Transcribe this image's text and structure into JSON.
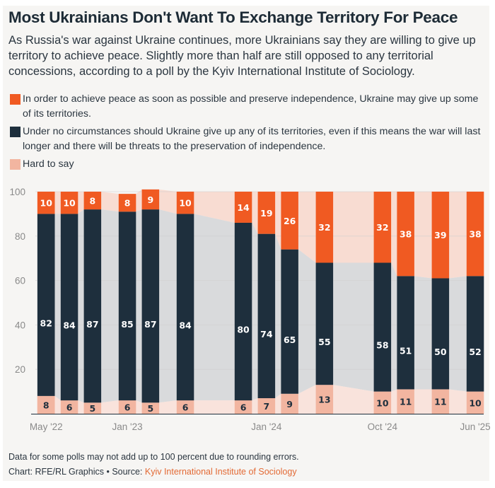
{
  "title": "Most Ukrainians Don't Want To Exchange Territory For Peace",
  "subtitle": "As Russia's war against Ukraine continues, more Ukrainians say they are willing to give up territory to achieve peace. Slightly more than half are still opposed to any territorial concessions, according to a poll by the Kyiv International Institute of Sociology.",
  "legend": [
    {
      "label": "In order to achieve peace as soon as possible and preserve independence, Ukraine may give up some of its territories.",
      "color": "#f05a22"
    },
    {
      "label": "Under no circumstances should Ukraine give up any of its territories, even if this means the war will last longer and there will be threats to the preservation of independence.",
      "color": "#1e2f3d"
    },
    {
      "label": "Hard to say",
      "color": "#f2b5a0"
    }
  ],
  "footer": {
    "note": "Data for some polls may not add up to 100 percent due to rounding errors.",
    "credit": "Chart: RFE/RL Graphics • Source: ",
    "source": "Kyiv International Institute of Sociology"
  },
  "chart_data": {
    "type": "bar",
    "stacked": true,
    "title": "Most Ukrainians Don't Want To Exchange Territory For Peace",
    "xlabel": "",
    "ylabel": "",
    "ylim": [
      0,
      100
    ],
    "yticks": [
      20,
      40,
      60,
      80,
      100
    ],
    "grid": true,
    "x_tick_labels": [
      {
        "label": "May '22",
        "poll_index": 0
      },
      {
        "label": "Jan '23",
        "poll_index": 3
      },
      {
        "label": "Jan '24",
        "poll_index": 7
      },
      {
        "label": "Oct '24",
        "poll_index": 10
      },
      {
        "label": "Jun '25",
        "poll_index": 13
      }
    ],
    "poll_positions": [
      0,
      1,
      2,
      3.5,
      4.5,
      6,
      8.5,
      9.5,
      10.5,
      12,
      14.5,
      15.5,
      17,
      18.5
    ],
    "series": [
      {
        "name": "Hard to say",
        "color": "#f2b5a0",
        "values": [
          8,
          6,
          5,
          6,
          5,
          6,
          6,
          7,
          9,
          13,
          10,
          11,
          11,
          10
        ]
      },
      {
        "name": "Under no circumstances should Ukraine give up any of its territories",
        "color": "#1e2f3d",
        "values": [
          82,
          84,
          87,
          85,
          87,
          84,
          80,
          74,
          65,
          55,
          58,
          51,
          50,
          52
        ]
      },
      {
        "name": "Ukraine may give up some of its territories",
        "color": "#f05a22",
        "values": [
          10,
          10,
          8,
          8,
          9,
          10,
          14,
          19,
          26,
          32,
          32,
          38,
          39,
          38
        ]
      }
    ],
    "legend_position": "top"
  }
}
